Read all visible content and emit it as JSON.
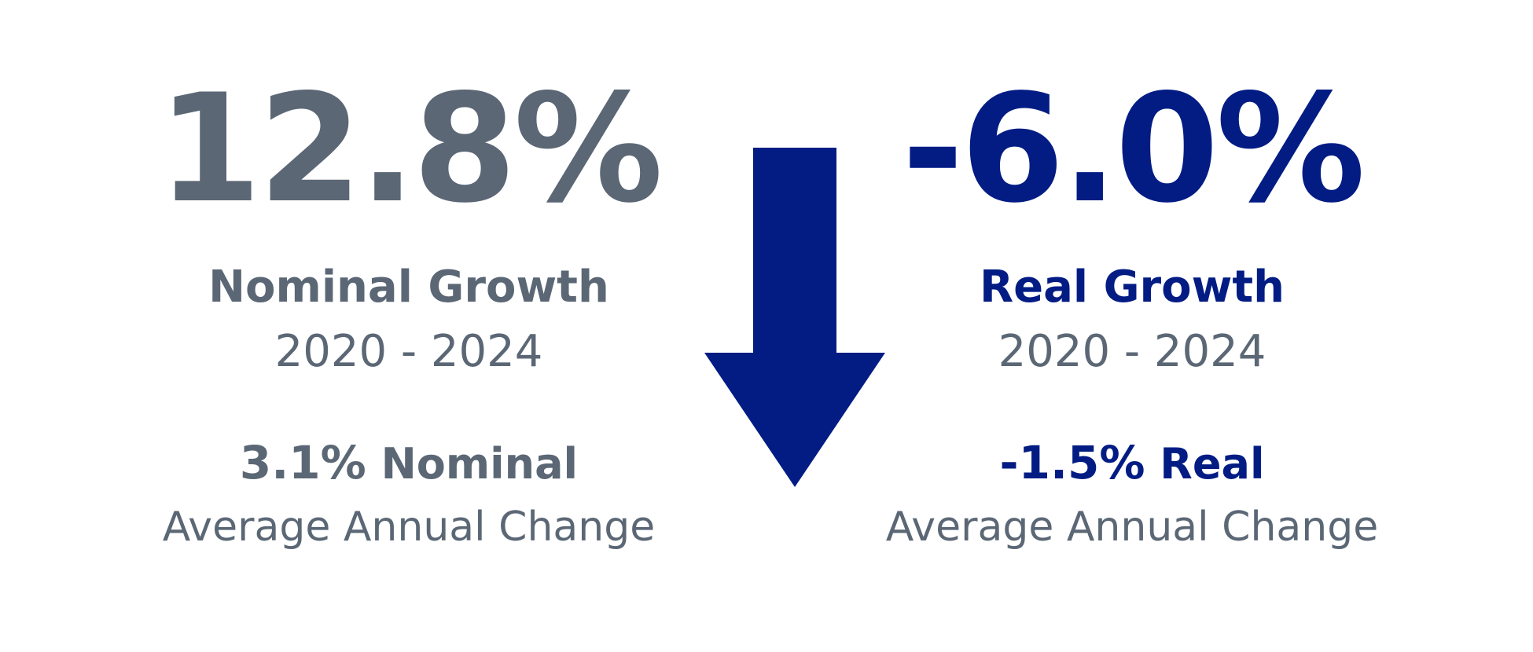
{
  "colors": {
    "nominal": "#5b6775",
    "real": "#021c84",
    "period": "#5b6775",
    "caption": "#5b6775",
    "arrow": "#021c84",
    "background": "#ffffff"
  },
  "nominal": {
    "value": "12.8%",
    "title": "Nominal Growth",
    "period": "2020 - 2024",
    "avg_value": "3.1%",
    "avg_label": "Nominal",
    "avg_caption": "Average Annual Change"
  },
  "real": {
    "value": "-6.0%",
    "title": "Real Growth",
    "period": "2020 - 2024",
    "avg_value": "-1.5%",
    "avg_label": "Real",
    "avg_caption": "Average Annual Change"
  },
  "arrow": {
    "icon": "arrow-down-icon"
  }
}
